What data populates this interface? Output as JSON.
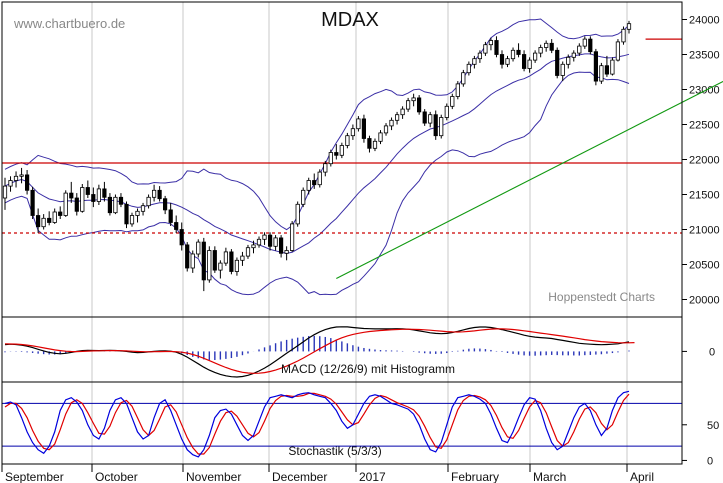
{
  "chart_data": {
    "type": "candlestick",
    "title": "MDAX",
    "watermark": "www.chartbuero.de",
    "credit": "Hoppenstedt Charts",
    "x_labels": [
      "September",
      "October",
      "November",
      "December",
      "2017",
      "February",
      "March",
      "April"
    ],
    "price_panel": {
      "y_ticks": [
        "24000",
        "23500",
        "23000",
        "22500",
        "22000",
        "21500",
        "21000",
        "20500",
        "20000"
      ],
      "ylim": [
        19750,
        24250
      ],
      "horizontal_lines": [
        {
          "value": 21950,
          "style": "solid",
          "color": "#cc0000"
        },
        {
          "value": 20950,
          "style": "dashed",
          "color": "#cc0000"
        },
        {
          "value": 23720,
          "style": "solid",
          "color": "#cc0000"
        }
      ],
      "trendline": {
        "color": "#119911",
        "from_index": 60,
        "from_value": 20300,
        "to_index": 160,
        "to_value": 24320
      },
      "ohlc": [
        [
          21450,
          21740,
          21280,
          21620
        ],
        [
          21620,
          21760,
          21540,
          21700
        ],
        [
          21700,
          21830,
          21600,
          21760
        ],
        [
          21760,
          21880,
          21660,
          21780
        ],
        [
          21780,
          21850,
          21500,
          21560
        ],
        [
          21560,
          21610,
          21150,
          21200
        ],
        [
          21200,
          21300,
          20950,
          21040
        ],
        [
          21040,
          21220,
          21000,
          21160
        ],
        [
          21160,
          21260,
          21060,
          21100
        ],
        [
          21100,
          21300,
          21080,
          21250
        ],
        [
          21250,
          21330,
          21150,
          21200
        ],
        [
          21200,
          21560,
          21180,
          21520
        ],
        [
          21520,
          21680,
          21380,
          21450
        ],
        [
          21450,
          21520,
          21200,
          21260
        ],
        [
          21260,
          21650,
          21240,
          21600
        ],
        [
          21600,
          21700,
          21450,
          21500
        ],
        [
          21500,
          21600,
          21320,
          21400
        ],
        [
          21400,
          21640,
          21350,
          21580
        ],
        [
          21580,
          21680,
          21400,
          21460
        ],
        [
          21460,
          21520,
          21200,
          21240
        ],
        [
          21240,
          21500,
          21220,
          21460
        ],
        [
          21460,
          21520,
          21320,
          21360
        ],
        [
          21360,
          21400,
          21020,
          21080
        ],
        [
          21080,
          21240,
          21040,
          21200
        ],
        [
          21200,
          21300,
          21100,
          21260
        ],
        [
          21260,
          21380,
          21200,
          21340
        ],
        [
          21340,
          21500,
          21300,
          21460
        ],
        [
          21460,
          21640,
          21400,
          21560
        ],
        [
          21560,
          21620,
          21400,
          21440
        ],
        [
          21440,
          21480,
          21220,
          21280
        ],
        [
          21280,
          21380,
          21050,
          21100
        ],
        [
          21100,
          21200,
          20950,
          21000
        ],
        [
          21000,
          21100,
          20700,
          20780
        ],
        [
          20780,
          20820,
          20400,
          20450
        ],
        [
          20450,
          20700,
          20380,
          20650
        ],
        [
          20650,
          20860,
          20600,
          20820
        ],
        [
          20820,
          20880,
          20120,
          20280
        ],
        [
          20280,
          20760,
          20240,
          20700
        ],
        [
          20700,
          20760,
          20380,
          20420
        ],
        [
          20420,
          20560,
          20300,
          20520
        ],
        [
          20520,
          20740,
          20480,
          20680
        ],
        [
          20680,
          20720,
          20360,
          20400
        ],
        [
          20400,
          20600,
          20340,
          20560
        ],
        [
          20560,
          20680,
          20480,
          20620
        ],
        [
          20620,
          20780,
          20580,
          20740
        ],
        [
          20740,
          20840,
          20660,
          20780
        ],
        [
          20780,
          20900,
          20740,
          20860
        ],
        [
          20860,
          20960,
          20780,
          20920
        ],
        [
          20920,
          20960,
          20700,
          20760
        ],
        [
          20760,
          20920,
          20700,
          20880
        ],
        [
          20880,
          20920,
          20600,
          20660
        ],
        [
          20660,
          20760,
          20560,
          20700
        ],
        [
          20700,
          21120,
          20680,
          21080
        ],
        [
          21080,
          21400,
          21040,
          21360
        ],
        [
          21360,
          21600,
          21320,
          21560
        ],
        [
          21560,
          21740,
          21500,
          21700
        ],
        [
          21700,
          21800,
          21580,
          21640
        ],
        [
          21640,
          21860,
          21600,
          21820
        ],
        [
          21820,
          21980,
          21760,
          21940
        ],
        [
          21940,
          22140,
          21900,
          22100
        ],
        [
          22100,
          22220,
          22000,
          22060
        ],
        [
          22060,
          22240,
          22020,
          22200
        ],
        [
          22200,
          22380,
          22160,
          22340
        ],
        [
          22340,
          22500,
          22280,
          22440
        ],
        [
          22440,
          22620,
          22400,
          22580
        ],
        [
          22580,
          22640,
          22240,
          22300
        ],
        [
          22300,
          22340,
          22100,
          22160
        ],
        [
          22160,
          22300,
          22120,
          22260
        ],
        [
          22260,
          22420,
          22220,
          22380
        ],
        [
          22380,
          22520,
          22340,
          22480
        ],
        [
          22480,
          22600,
          22420,
          22560
        ],
        [
          22560,
          22680,
          22500,
          22640
        ],
        [
          22640,
          22760,
          22580,
          22720
        ],
        [
          22720,
          22880,
          22680,
          22840
        ],
        [
          22840,
          22940,
          22760,
          22880
        ],
        [
          22880,
          22920,
          22640,
          22680
        ],
        [
          22680,
          22720,
          22480,
          22520
        ],
        [
          22520,
          22680,
          22460,
          22640
        ],
        [
          22640,
          22700,
          22280,
          22340
        ],
        [
          22340,
          22640,
          22300,
          22600
        ],
        [
          22600,
          22800,
          22560,
          22760
        ],
        [
          22760,
          22940,
          22720,
          22900
        ],
        [
          22900,
          23120,
          22860,
          23080
        ],
        [
          23080,
          23280,
          23040,
          23240
        ],
        [
          23240,
          23400,
          23200,
          23360
        ],
        [
          23360,
          23480,
          23300,
          23440
        ],
        [
          23440,
          23560,
          23380,
          23520
        ],
        [
          23520,
          23680,
          23480,
          23640
        ],
        [
          23640,
          23740,
          23560,
          23700
        ],
        [
          23700,
          23760,
          23460,
          23500
        ],
        [
          23500,
          23560,
          23300,
          23360
        ],
        [
          23360,
          23480,
          23320,
          23440
        ],
        [
          23440,
          23600,
          23400,
          23560
        ],
        [
          23560,
          23660,
          23460,
          23500
        ],
        [
          23500,
          23560,
          23260,
          23300
        ],
        [
          23300,
          23460,
          23240,
          23420
        ],
        [
          23420,
          23560,
          23380,
          23520
        ],
        [
          23520,
          23640,
          23460,
          23600
        ],
        [
          23600,
          23700,
          23540,
          23660
        ],
        [
          23660,
          23720,
          23520,
          23560
        ],
        [
          23560,
          23600,
          23160,
          23200
        ],
        [
          23200,
          23400,
          23120,
          23360
        ],
        [
          23360,
          23500,
          23300,
          23460
        ],
        [
          23460,
          23560,
          23400,
          23520
        ],
        [
          23520,
          23660,
          23480,
          23620
        ],
        [
          23620,
          23760,
          23580,
          23720
        ],
        [
          23720,
          23760,
          23500,
          23540
        ],
        [
          23540,
          23580,
          23060,
          23120
        ],
        [
          23120,
          23380,
          23080,
          23340
        ],
        [
          23340,
          23480,
          23180,
          23220
        ],
        [
          23220,
          23460,
          23200,
          23420
        ],
        [
          23420,
          23720,
          23400,
          23680
        ],
        [
          23680,
          23900,
          23640,
          23860
        ],
        [
          23860,
          23980,
          23800,
          23940
        ]
      ]
    },
    "macd_panel": {
      "label": "MACD (12/26/9) mit Histogramm",
      "y_ticks": [
        "0"
      ],
      "ylim": [
        -320,
        360
      ],
      "macd": [
        70,
        75,
        72,
        65,
        55,
        40,
        22,
        5,
        -10,
        -20,
        -25,
        -20,
        -10,
        0,
        8,
        12,
        10,
        8,
        10,
        12,
        10,
        5,
        0,
        -8,
        -12,
        -10,
        -5,
        0,
        4,
        6,
        2,
        -8,
        -30,
        -60,
        -95,
        -130,
        -165,
        -195,
        -220,
        -240,
        -255,
        -265,
        -268,
        -262,
        -250,
        -230,
        -205,
        -175,
        -140,
        -100,
        -60,
        -20,
        20,
        60,
        100,
        140,
        175,
        205,
        228,
        245,
        255,
        258,
        256,
        250,
        245,
        240,
        238,
        236,
        235,
        236,
        237,
        238,
        236,
        232,
        225,
        215,
        205,
        195,
        188,
        185,
        188,
        198,
        210,
        225,
        240,
        250,
        255,
        255,
        250,
        240,
        228,
        215,
        200,
        185,
        170,
        158,
        150,
        145,
        140,
        135,
        125,
        115,
        105,
        95,
        85,
        80,
        75,
        72,
        70,
        72,
        75,
        80,
        90,
        100
      ],
      "signal": [
        80,
        78,
        76,
        72,
        66,
        58,
        48,
        37,
        26,
        16,
        8,
        2,
        -1,
        -2,
        0,
        3,
        5,
        6,
        7,
        8,
        8,
        7,
        5,
        2,
        -1,
        -3,
        -4,
        -3,
        -2,
        -1,
        -1,
        -3,
        -8,
        -18,
        -32,
        -50,
        -72,
        -96,
        -120,
        -145,
        -168,
        -188,
        -205,
        -218,
        -226,
        -229,
        -228,
        -222,
        -210,
        -195,
        -176,
        -154,
        -128,
        -100,
        -70,
        -38,
        -5,
        28,
        60,
        90,
        118,
        142,
        162,
        178,
        190,
        200,
        208,
        214,
        219,
        223,
        226,
        229,
        231,
        232,
        231,
        229,
        226,
        222,
        217,
        212,
        207,
        204,
        203,
        205,
        209,
        215,
        222,
        228,
        233,
        235,
        235,
        233,
        229,
        223,
        216,
        208,
        200,
        192,
        184,
        176,
        168,
        160,
        151,
        142,
        133,
        124,
        116,
        109,
        103,
        98,
        94,
        91,
        90,
        90,
        92
      ]
    },
    "stochastic_panel": {
      "label": "Stochastik (5/3/3)",
      "y_ticks": [
        "50",
        "0"
      ],
      "ylim": [
        -5,
        110
      ],
      "upper_level": 80,
      "lower_level": 20,
      "k": [
        80,
        82,
        78,
        60,
        40,
        25,
        15,
        10,
        20,
        40,
        70,
        85,
        88,
        82,
        70,
        50,
        35,
        30,
        45,
        70,
        85,
        88,
        80,
        60,
        40,
        30,
        35,
        60,
        80,
        85,
        70,
        50,
        30,
        15,
        8,
        5,
        15,
        35,
        60,
        70,
        72,
        65,
        50,
        35,
        28,
        35,
        55,
        75,
        88,
        90,
        92,
        90,
        88,
        92,
        94,
        95,
        92,
        90,
        88,
        80,
        70,
        55,
        45,
        50,
        65,
        80,
        90,
        92,
        90,
        85,
        80,
        78,
        75,
        72,
        65,
        50,
        30,
        15,
        12,
        25,
        50,
        75,
        88,
        90,
        92,
        90,
        86,
        80,
        65,
        45,
        28,
        25,
        40,
        60,
        78,
        88,
        86,
        70,
        45,
        25,
        15,
        20,
        40,
        60,
        75,
        80,
        70,
        50,
        35,
        45,
        70,
        88,
        95,
        97
      ],
      "d": [
        75,
        80,
        80,
        73,
        60,
        42,
        27,
        17,
        15,
        23,
        43,
        65,
        81,
        85,
        80,
        67,
        52,
        38,
        37,
        48,
        67,
        81,
        84,
        76,
        60,
        43,
        35,
        42,
        58,
        75,
        78,
        68,
        50,
        32,
        18,
        9,
        9,
        18,
        37,
        55,
        67,
        69,
        62,
        50,
        38,
        33,
        39,
        55,
        73,
        84,
        90,
        91,
        90,
        90,
        91,
        94,
        94,
        92,
        90,
        86,
        79,
        68,
        57,
        50,
        53,
        65,
        78,
        87,
        91,
        89,
        85,
        81,
        78,
        75,
        71,
        62,
        48,
        32,
        19,
        17,
        29,
        50,
        71,
        84,
        90,
        91,
        89,
        85,
        77,
        63,
        46,
        33,
        31,
        42,
        59,
        75,
        84,
        81,
        67,
        47,
        28,
        20,
        25,
        40,
        58,
        72,
        75,
        67,
        52,
        43,
        50,
        68,
        84,
        93
      ]
    }
  }
}
